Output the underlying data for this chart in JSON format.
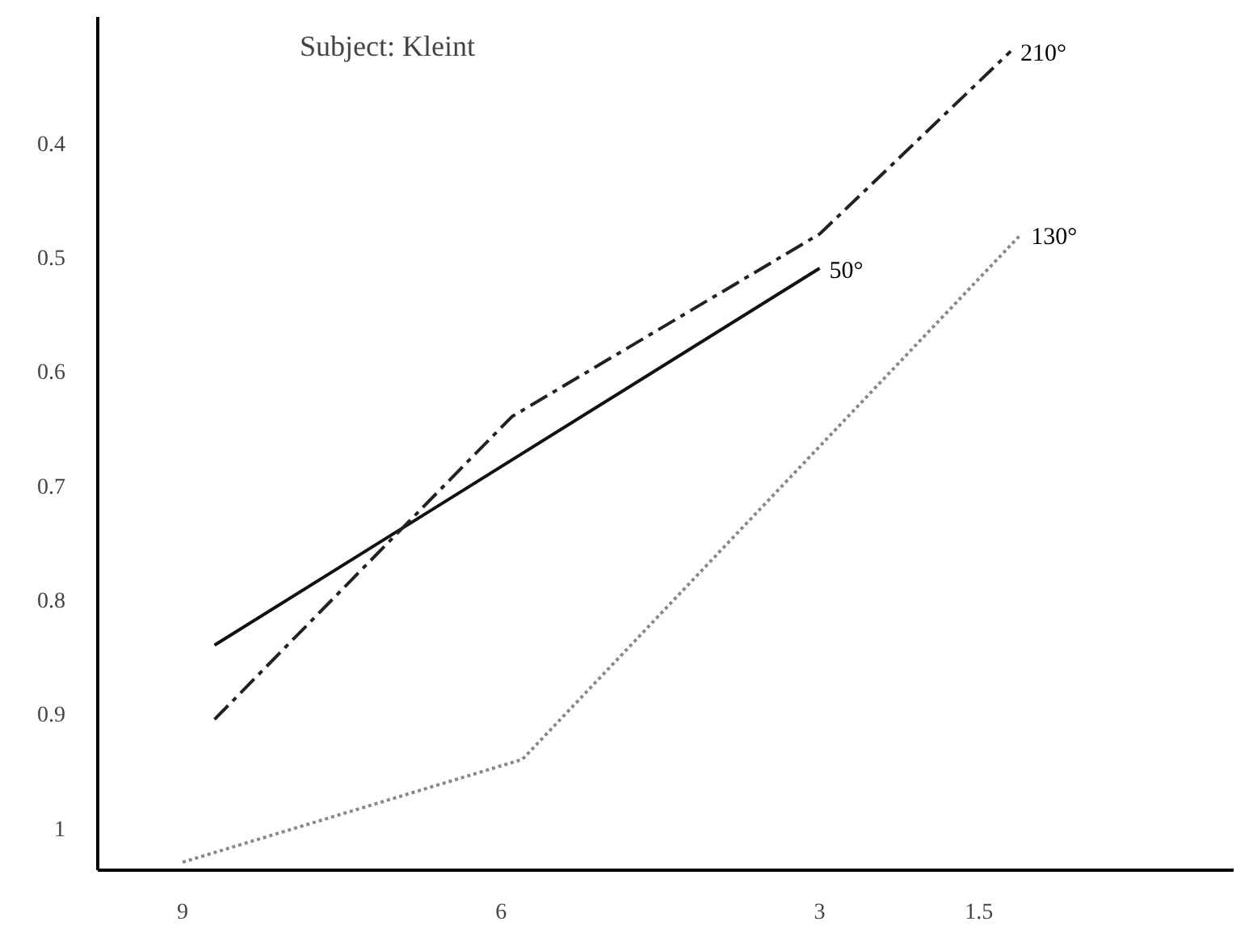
{
  "chart_data": {
    "type": "line",
    "title": "Subject: Kleint",
    "xlim": [
      9.8,
      -0.9
    ],
    "xticks": [
      9,
      6,
      3,
      1.5
    ],
    "ylim": [
      1.037,
      0.29
    ],
    "yticks": [
      0.4,
      0.5,
      0.6,
      0.7,
      0.8,
      0.9,
      1
    ],
    "grid": false,
    "marker": "none",
    "series": [
      {
        "name": "50°",
        "color": "#111111",
        "line_style": "solid",
        "x": [
          8.7,
          3.0
        ],
        "values": [
          0.84,
          0.51
        ]
      },
      {
        "name": "210°",
        "color": "#222222",
        "line_style": "dashed",
        "x": [
          8.7,
          5.9,
          3.0,
          1.2
        ],
        "values": [
          0.905,
          0.64,
          0.48,
          0.32
        ]
      },
      {
        "name": "130°",
        "color": "#888888",
        "line_style": "dotted",
        "x": [
          9.0,
          5.8,
          1.1
        ],
        "values": [
          1.03,
          0.94,
          0.48
        ]
      }
    ]
  }
}
